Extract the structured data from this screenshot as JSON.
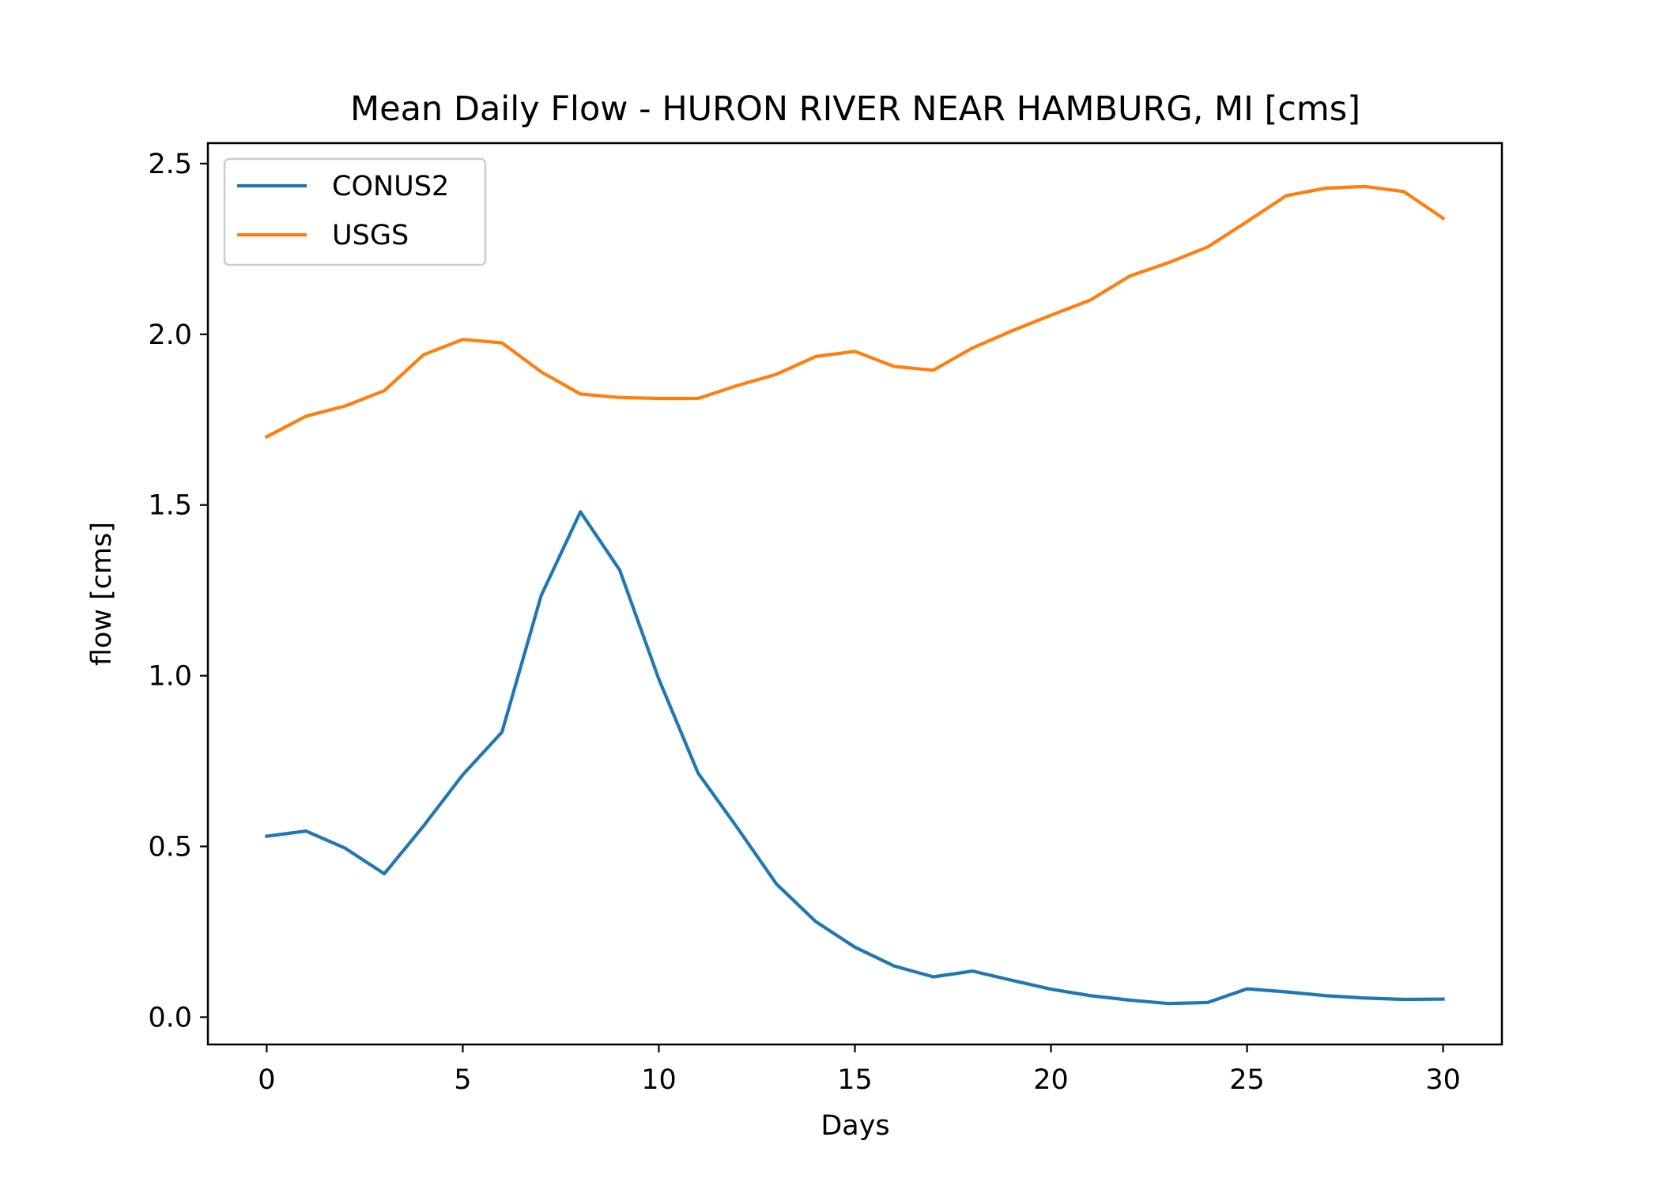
{
  "chart_data": {
    "type": "line",
    "title": "Mean Daily Flow - HURON RIVER NEAR HAMBURG, MI [cms]",
    "xlabel": "Days",
    "ylabel": "flow [cms]",
    "xlim": [
      -1.5,
      31.5
    ],
    "ylim": [
      -0.08,
      2.56
    ],
    "xticks": [
      0,
      5,
      10,
      15,
      20,
      25,
      30
    ],
    "xtick_labels": [
      "0",
      "5",
      "10",
      "15",
      "20",
      "25",
      "30"
    ],
    "yticks": [
      0.0,
      0.5,
      1.0,
      1.5,
      2.0,
      2.5
    ],
    "ytick_labels": [
      "0.0",
      "0.5",
      "1.0",
      "1.5",
      "2.0",
      "2.5"
    ],
    "grid": false,
    "legend_position": "top-left",
    "x": [
      0,
      1,
      2,
      3,
      4,
      5,
      6,
      7,
      8,
      9,
      10,
      11,
      12,
      13,
      14,
      15,
      16,
      17,
      18,
      19,
      20,
      21,
      22,
      23,
      24,
      25,
      26,
      27,
      28,
      29,
      30
    ],
    "series": [
      {
        "name": "CONUS2",
        "color": "#1f77b4",
        "values": [
          0.53,
          0.545,
          0.495,
          0.42,
          0.56,
          0.71,
          0.835,
          1.235,
          1.48,
          1.31,
          0.99,
          0.715,
          0.555,
          0.39,
          0.28,
          0.205,
          0.15,
          0.118,
          0.135,
          0.108,
          0.082,
          0.063,
          0.05,
          0.04,
          0.043,
          0.083,
          0.074,
          0.063,
          0.056,
          0.052,
          0.053
        ]
      },
      {
        "name": "USGS",
        "color": "#ff7f0e",
        "values": [
          1.7,
          1.76,
          1.79,
          1.835,
          1.94,
          1.985,
          1.975,
          1.89,
          1.825,
          1.815,
          1.812,
          1.812,
          1.85,
          1.883,
          1.935,
          1.95,
          1.906,
          1.895,
          1.96,
          2.01,
          2.056,
          2.1,
          2.17,
          2.21,
          2.256,
          2.33,
          2.406,
          2.428,
          2.433,
          2.418,
          2.34
        ]
      }
    ]
  }
}
